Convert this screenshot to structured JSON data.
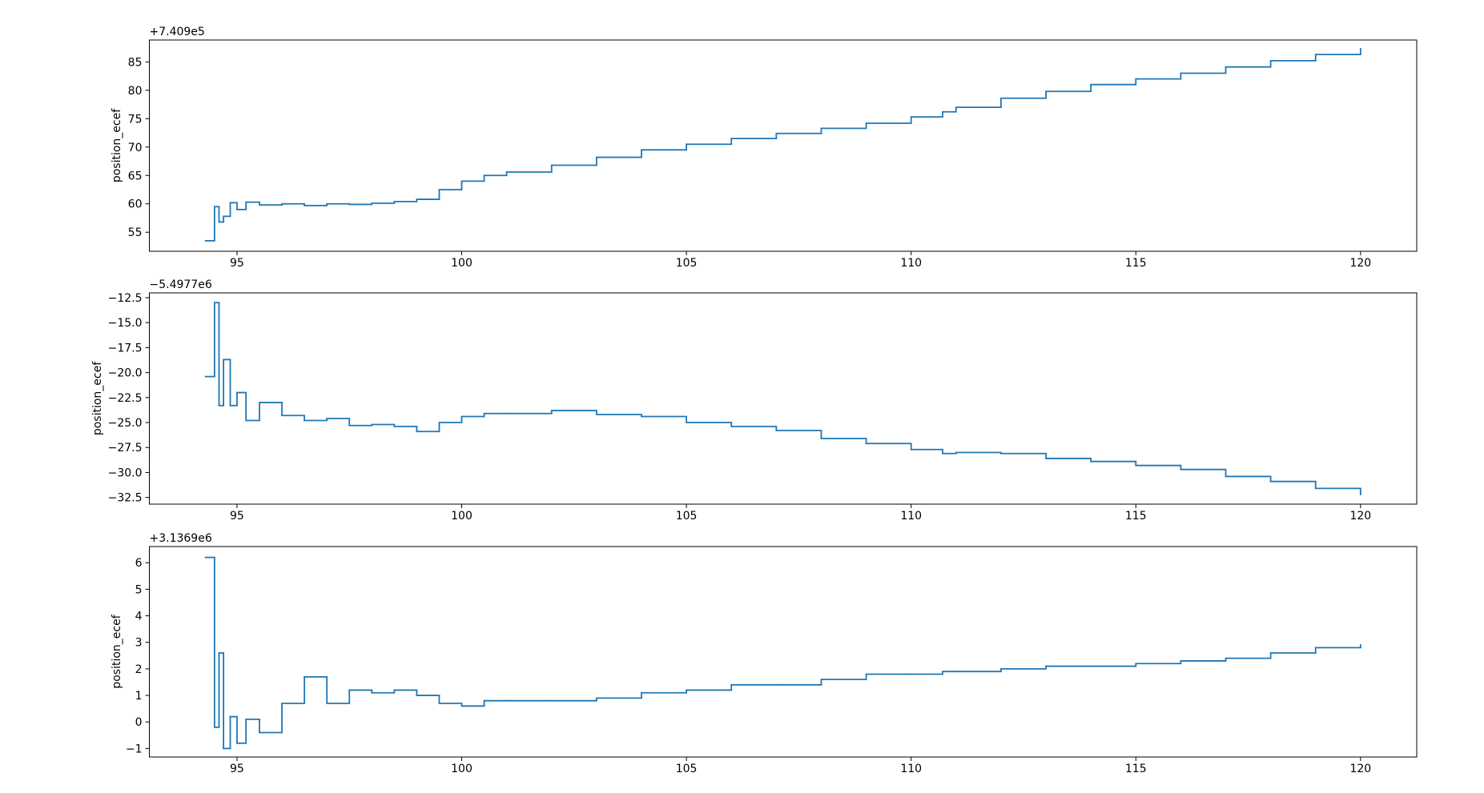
{
  "chart_data": [
    {
      "type": "line",
      "ylabel": "position_ecef",
      "offset_text": "+7.409e5",
      "drawstyle": "steps-post",
      "x": [
        94.3,
        94.5,
        94.6,
        94.7,
        94.85,
        95.0,
        95.2,
        95.5,
        96.0,
        96.5,
        97.0,
        97.5,
        98.0,
        98.5,
        99.0,
        99.5,
        100.0,
        100.5,
        101.0,
        102.0,
        103.0,
        104.0,
        105.0,
        106.0,
        107.0,
        108.0,
        109.0,
        110.0,
        110.7,
        111.0,
        112.0,
        113.0,
        114.0,
        115.0,
        116.0,
        117.0,
        118.0,
        119.0,
        120.0
      ],
      "series": [
        {
          "color": "#1f77b4",
          "values": [
            53.5,
            59.5,
            56.8,
            57.8,
            60.2,
            59.0,
            60.3,
            59.8,
            60.0,
            59.7,
            60.0,
            59.9,
            60.1,
            60.4,
            60.8,
            62.5,
            64.0,
            65.0,
            65.6,
            66.8,
            68.2,
            69.5,
            70.5,
            71.5,
            72.4,
            73.3,
            74.2,
            75.3,
            76.2,
            77.0,
            78.6,
            79.8,
            81.0,
            82.0,
            83.0,
            84.1,
            85.2,
            86.3,
            87.3
          ]
        }
      ],
      "xlim": [
        93.05,
        121.25
      ],
      "xticks": [
        95,
        100,
        105,
        110,
        115,
        120
      ],
      "ylim": [
        51.65,
        88.85
      ],
      "yticks": [
        55,
        60,
        65,
        70,
        75,
        80,
        85
      ]
    },
    {
      "type": "line",
      "ylabel": "position_ecef",
      "offset_text": "−5.4977e6",
      "drawstyle": "steps-post",
      "x": [
        94.3,
        94.5,
        94.6,
        94.7,
        94.85,
        95.0,
        95.2,
        95.5,
        96.0,
        96.5,
        97.0,
        97.5,
        98.0,
        98.5,
        99.0,
        99.5,
        100.0,
        100.5,
        101.0,
        102.0,
        103.0,
        104.0,
        105.0,
        106.0,
        107.0,
        108.0,
        109.0,
        110.0,
        110.7,
        111.0,
        112.0,
        113.0,
        114.0,
        115.0,
        116.0,
        117.0,
        118.0,
        119.0,
        120.0
      ],
      "series": [
        {
          "color": "#1f77b4",
          "values": [
            -20.4,
            -13.0,
            -23.3,
            -18.7,
            -23.3,
            -22.0,
            -24.8,
            -23.0,
            -24.3,
            -24.8,
            -24.6,
            -25.3,
            -25.2,
            -25.4,
            -25.9,
            -25.0,
            -24.4,
            -24.1,
            -24.1,
            -23.8,
            -24.2,
            -24.4,
            -25.0,
            -25.4,
            -25.8,
            -26.6,
            -27.1,
            -27.7,
            -28.1,
            -28.0,
            -28.1,
            -28.6,
            -28.9,
            -29.3,
            -29.7,
            -30.4,
            -30.9,
            -31.6,
            -32.2
          ]
        }
      ],
      "xlim": [
        93.05,
        121.25
      ],
      "xticks": [
        95,
        100,
        105,
        110,
        115,
        120
      ],
      "ylim": [
        -33.17,
        -12.02
      ],
      "yticks": [
        {
          "value": -12.5,
          "label": "−12.5"
        },
        {
          "value": -15,
          "label": "−15.0"
        },
        {
          "value": -17.5,
          "label": "−17.5"
        },
        {
          "value": -20,
          "label": "−20.0"
        },
        {
          "value": -22.5,
          "label": "−22.5"
        },
        {
          "value": -25,
          "label": "−25.0"
        },
        {
          "value": -27.5,
          "label": "−27.5"
        },
        {
          "value": -30,
          "label": "−30.0"
        },
        {
          "value": -32.5,
          "label": "−32.5"
        }
      ]
    },
    {
      "type": "line",
      "ylabel": "position_ecef",
      "offset_text": "+3.1369e6",
      "drawstyle": "steps-post",
      "x": [
        94.3,
        94.5,
        94.6,
        94.7,
        94.85,
        95.0,
        95.2,
        95.5,
        96.0,
        96.5,
        97.0,
        97.5,
        98.0,
        98.5,
        99.0,
        99.5,
        100.0,
        100.5,
        101.0,
        102.0,
        103.0,
        104.0,
        105.0,
        106.0,
        107.0,
        108.0,
        109.0,
        110.0,
        110.7,
        111.0,
        112.0,
        113.0,
        114.0,
        115.0,
        116.0,
        117.0,
        118.0,
        119.0,
        120.0
      ],
      "series": [
        {
          "color": "#1f77b4",
          "values": [
            6.2,
            -0.2,
            2.6,
            -1.0,
            0.2,
            -0.8,
            0.1,
            -0.4,
            0.7,
            1.7,
            0.7,
            1.2,
            1.1,
            1.2,
            1.0,
            0.7,
            0.6,
            0.8,
            0.8,
            0.8,
            0.9,
            1.1,
            1.2,
            1.4,
            1.4,
            1.6,
            1.8,
            1.8,
            1.9,
            1.9,
            2.0,
            2.1,
            2.1,
            2.2,
            2.3,
            2.4,
            2.6,
            2.8,
            2.9
          ]
        }
      ],
      "xlim": [
        93.05,
        121.25
      ],
      "xticks": [
        95,
        100,
        105,
        110,
        115,
        120
      ],
      "ylim": [
        -1.32,
        6.61
      ],
      "yticks": [
        {
          "value": -1,
          "label": "−1"
        },
        0,
        1,
        2,
        3,
        4,
        5,
        6
      ]
    }
  ]
}
